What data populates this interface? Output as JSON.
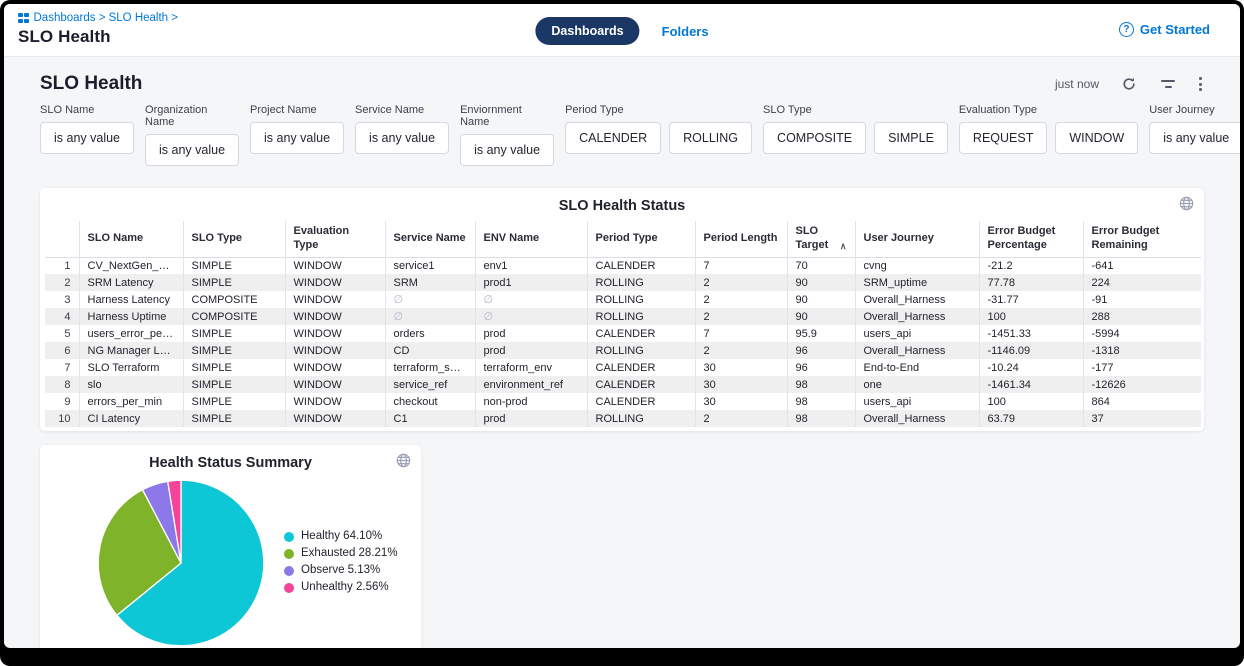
{
  "topbar": {
    "breadcrumb": "Dashboards > SLO Health >",
    "title": "SLO Health",
    "tabs": [
      {
        "label": "Dashboards",
        "active": true
      },
      {
        "label": "Folders",
        "active": false
      }
    ],
    "get_started": "Get Started"
  },
  "page": {
    "title": "SLO Health",
    "refreshed": "just now"
  },
  "filters": [
    {
      "label": "SLO Name",
      "buttons": [
        "is any value"
      ]
    },
    {
      "label": "Organization Name",
      "buttons": [
        "is any value"
      ]
    },
    {
      "label": "Project Name",
      "buttons": [
        "is any value"
      ]
    },
    {
      "label": "Service Name",
      "buttons": [
        "is any value"
      ]
    },
    {
      "label": "Enviornment Name",
      "buttons": [
        "is any value"
      ]
    },
    {
      "label": "Period Type",
      "buttons": [
        "CALENDER",
        "ROLLING"
      ]
    },
    {
      "label": "SLO Type",
      "buttons": [
        "COMPOSITE",
        "SIMPLE"
      ]
    },
    {
      "label": "Evaluation Type",
      "buttons": [
        "REQUEST",
        "WINDOW"
      ]
    },
    {
      "label": "User Journey",
      "buttons": [
        "is any value"
      ]
    }
  ],
  "table": {
    "title": "SLO Health Status",
    "columns": [
      "SLO Name",
      "SLO Type",
      "Evaluation Type",
      "Service Name",
      "ENV Name",
      "Period Type",
      "Period Length",
      "SLO Target",
      "User Journey",
      "Error Budget Percentage",
      "Error Budget Remaining"
    ],
    "sort": {
      "column": "SLO Target",
      "direction": "asc",
      "indicator": "∧"
    },
    "rows": [
      [
        "CV_NextGen_Prod",
        "SIMPLE",
        "WINDOW",
        "service1",
        "env1",
        "CALENDER",
        "7",
        "70",
        "cvng",
        "-21.2",
        "-641"
      ],
      [
        "SRM Latency",
        "SIMPLE",
        "WINDOW",
        "SRM",
        "prod1",
        "ROLLING",
        "2",
        "90",
        "SRM_uptime",
        "77.78",
        "224"
      ],
      [
        "Harness Latency",
        "COMPOSITE",
        "WINDOW",
        "∅",
        "∅",
        "ROLLING",
        "2",
        "90",
        "Overall_Harness",
        "-31.77",
        "-91"
      ],
      [
        "Harness Uptime",
        "COMPOSITE",
        "WINDOW",
        "∅",
        "∅",
        "ROLLING",
        "2",
        "90",
        "Overall_Harness",
        "100",
        "288"
      ],
      [
        "users_error_per_min",
        "SIMPLE",
        "WINDOW",
        "orders",
        "prod",
        "CALENDER",
        "7",
        "95.9",
        "users_api",
        "-1451.33",
        "-5994"
      ],
      [
        "NG Manager Latency",
        "SIMPLE",
        "WINDOW",
        "CD",
        "prod",
        "ROLLING",
        "2",
        "96",
        "Overall_Harness",
        "-1146.09",
        "-1318"
      ],
      [
        "SLO Terraform",
        "SIMPLE",
        "WINDOW",
        "terraform_service",
        "terraform_env",
        "CALENDER",
        "30",
        "96",
        "End-to-End",
        "-10.24",
        "-177"
      ],
      [
        "slo",
        "SIMPLE",
        "WINDOW",
        "service_ref",
        "environment_ref",
        "CALENDER",
        "30",
        "98",
        "one",
        "-1461.34",
        "-12626"
      ],
      [
        "errors_per_min",
        "SIMPLE",
        "WINDOW",
        "checkout",
        "non-prod",
        "CALENDER",
        "30",
        "98",
        "users_api",
        "100",
        "864"
      ],
      [
        "CI Latency",
        "SIMPLE",
        "WINDOW",
        "C1",
        "prod",
        "ROLLING",
        "2",
        "98",
        "Overall_Harness",
        "63.79",
        "37"
      ]
    ]
  },
  "chart_data": {
    "type": "pie",
    "title": "Health Status Summary",
    "labels": [
      "Healthy",
      "Exhausted",
      "Observe",
      "Unhealthy"
    ],
    "values": [
      64.1,
      28.21,
      5.13,
      2.56
    ],
    "colors": [
      "#0dc6d6",
      "#7eb32a",
      "#8c78e8",
      "#f5429b"
    ],
    "legend_labels": [
      "Healthy 64.10%",
      "Exhausted 28.21%",
      "Observe 5.13%",
      "Unhealthy 2.56%"
    ],
    "legend_position": "right",
    "start_angle": 0
  },
  "ui_colors": {
    "accent_blue": "#0278d5",
    "active_tab_navy": "#1b3766",
    "page_background": "#f5f6f8",
    "row_alt": "#efefef"
  }
}
